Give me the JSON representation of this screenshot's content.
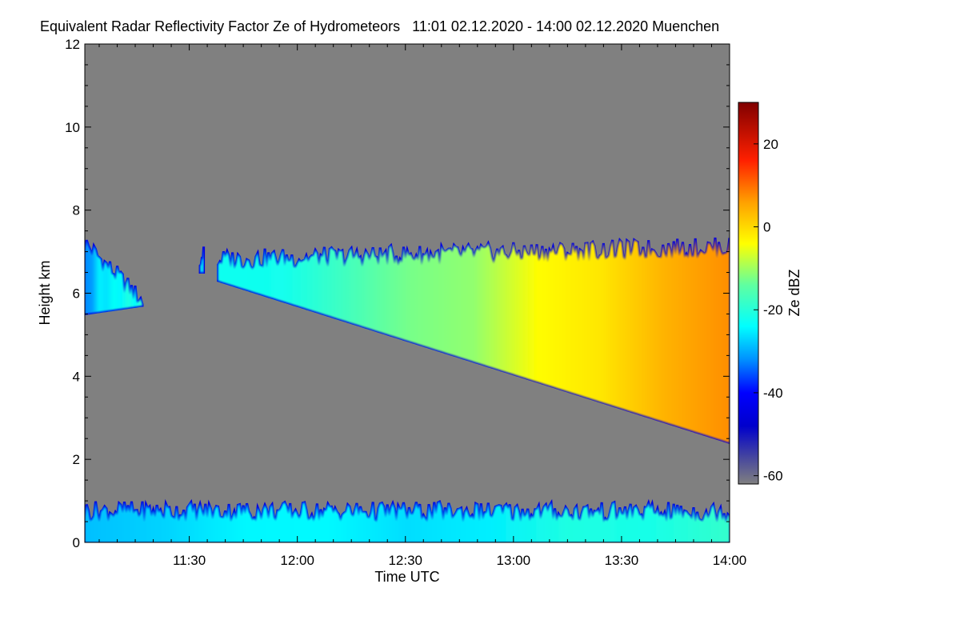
{
  "chart_data": {
    "type": "heatmap",
    "title": "Equivalent Radar Reflectivity Factor Ze of Hydrometeors   11:01 02.12.2020 - 14:00 02.12.2020 Muenchen",
    "xlabel": "Time UTC",
    "ylabel": "Height km",
    "xlim_minutes_utc": [
      661,
      840
    ],
    "ylim": [
      0,
      12
    ],
    "x_ticks": [
      {
        "minute": 690,
        "label": "11:30"
      },
      {
        "minute": 720,
        "label": "12:00"
      },
      {
        "minute": 750,
        "label": "12:30"
      },
      {
        "minute": 780,
        "label": "13:00"
      },
      {
        "minute": 810,
        "label": "13:30"
      },
      {
        "minute": 840,
        "label": "14:00"
      }
    ],
    "y_ticks": [
      {
        "value": 0,
        "label": "0"
      },
      {
        "value": 2,
        "label": "2"
      },
      {
        "value": 4,
        "label": "4"
      },
      {
        "value": 6,
        "label": "6"
      },
      {
        "value": 8,
        "label": "8"
      },
      {
        "value": 10,
        "label": "10"
      },
      {
        "value": 12,
        "label": "12"
      }
    ],
    "no_data_color": "#808080",
    "colorbar": {
      "label": "Ze dBZ",
      "range": [
        -62,
        30
      ],
      "ticks": [
        {
          "value": 20,
          "label": "20"
        },
        {
          "value": 0,
          "label": "0"
        },
        {
          "value": -20,
          "label": "-20"
        },
        {
          "value": -40,
          "label": "-40"
        },
        {
          "value": -60,
          "label": "-60"
        }
      ],
      "stops": [
        {
          "value": -62,
          "color": "#808080"
        },
        {
          "value": -56,
          "color": "#4a4a9c"
        },
        {
          "value": -48,
          "color": "#0000cc"
        },
        {
          "value": -40,
          "color": "#0000ff"
        },
        {
          "value": -32,
          "color": "#0090ff"
        },
        {
          "value": -24,
          "color": "#00ffff"
        },
        {
          "value": -14,
          "color": "#60ffa0"
        },
        {
          "value": -4,
          "color": "#ffff00"
        },
        {
          "value": 6,
          "color": "#ffa000"
        },
        {
          "value": 16,
          "color": "#ff2000"
        },
        {
          "value": 30,
          "color": "#800000"
        }
      ]
    },
    "echo_regions": [
      {
        "name": "early cloud",
        "time_range": [
          "11:01",
          "11:17"
        ],
        "base_km": [
          5.5,
          5.7
        ],
        "top_km": [
          7.2,
          5.8
        ],
        "ze_dbz": [
          -30,
          -20
        ]
      },
      {
        "name": "small fragment",
        "time_range": [
          "11:33",
          "11:34"
        ],
        "base_km": [
          6.5,
          6.5
        ],
        "top_km": [
          6.9,
          6.9
        ],
        "ze_dbz": [
          -25,
          -25
        ]
      },
      {
        "name": "main cloud",
        "time_range": [
          "11:38",
          "14:00"
        ],
        "base_km": [
          6.3,
          2.4
        ],
        "top_km": [
          6.8,
          7.1
        ],
        "ze_dbz": [
          -25,
          8
        ]
      },
      {
        "name": "near-surface layer",
        "time_range": [
          "11:01",
          "14:00"
        ],
        "base_km": [
          0.0,
          0.0
        ],
        "top_km": [
          0.75,
          0.72
        ],
        "ze_dbz": [
          -30,
          -20
        ]
      }
    ]
  }
}
